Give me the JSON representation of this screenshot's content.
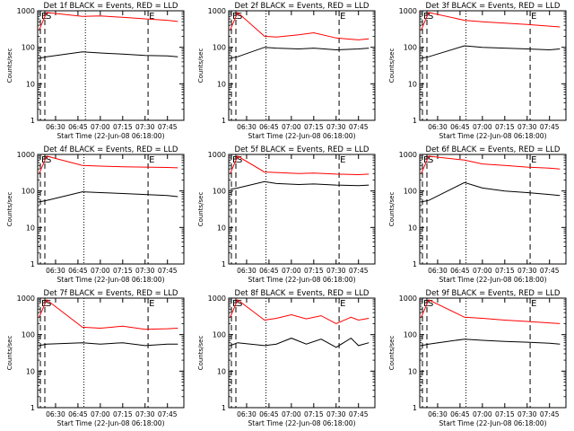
{
  "chart_data": [
    {
      "type": "line",
      "title": "Det 1f BLACK = Events, RED = LLD",
      "xlabel": "Start Time (22-Jun-08 06:18:00)",
      "ylabel": "Counts/sec",
      "x_ticks": [
        "06:30",
        "06:45",
        "07:00",
        "07:15",
        "07:30",
        "07:45"
      ],
      "y_ticks": [
        "1",
        "10",
        "100",
        "1000"
      ],
      "x_range": [
        "06:18",
        "07:56"
      ],
      "y_range": [
        1,
        1000
      ],
      "y_scale": "log",
      "markers": [
        {
          "label": "E",
          "time": "06:18"
        },
        {
          "label": "S",
          "time": "06:18"
        },
        {
          "label": "",
          "time": "06:50"
        },
        {
          "label": "E",
          "time": "07:32"
        }
      ],
      "series": [
        {
          "color": "#ff0000",
          "x": [
            "06:19",
            "06:24",
            "06:48",
            "07:00",
            "07:15",
            "07:30",
            "07:45",
            "07:52"
          ],
          "y": [
            300,
            900,
            700,
            720,
            660,
            600,
            550,
            510
          ]
        },
        {
          "color": "#000000",
          "x": [
            "06:19",
            "06:24",
            "06:48",
            "07:00",
            "07:15",
            "07:30",
            "07:45",
            "07:52"
          ],
          "y": [
            50,
            55,
            75,
            70,
            65,
            60,
            58,
            55
          ]
        }
      ]
    },
    {
      "type": "line",
      "title": "Det 2f BLACK = Events, RED = LLD",
      "xlabel": "Start Time (22-Jun-08 06:18:00)",
      "ylabel": "Counts/sec",
      "x_ticks": [
        "06:30",
        "06:45",
        "07:00",
        "07:15",
        "07:30",
        "07:45"
      ],
      "y_ticks": [
        "1",
        "10",
        "100",
        "1000"
      ],
      "x_range": [
        "06:18",
        "07:56"
      ],
      "y_range": [
        1,
        1000
      ],
      "y_scale": "log",
      "markers": [
        {
          "label": "E",
          "time": "06:18"
        },
        {
          "label": "S",
          "time": "06:18"
        },
        {
          "label": "",
          "time": "06:43"
        },
        {
          "label": "E",
          "time": "07:32"
        }
      ],
      "series": [
        {
          "color": "#ff0000",
          "x": [
            "06:19",
            "06:24",
            "06:42",
            "06:50",
            "07:05",
            "07:15",
            "07:30",
            "07:45",
            "07:52"
          ],
          "y": [
            300,
            900,
            200,
            190,
            220,
            250,
            180,
            160,
            170
          ]
        },
        {
          "color": "#000000",
          "x": [
            "06:19",
            "06:24",
            "06:42",
            "06:50",
            "07:05",
            "07:15",
            "07:30",
            "07:45",
            "07:52"
          ],
          "y": [
            50,
            55,
            100,
            95,
            90,
            95,
            85,
            90,
            95
          ]
        }
      ]
    },
    {
      "type": "line",
      "title": "Det 3f BLACK = Events, RED = LLD",
      "xlabel": "Start Time (22-Jun-08 06:18:00)",
      "ylabel": "Counts/sec",
      "x_ticks": [
        "06:30",
        "06:45",
        "07:00",
        "07:15",
        "07:30",
        "07:45"
      ],
      "y_ticks": [
        "1",
        "10",
        "100",
        "1000"
      ],
      "x_range": [
        "06:18",
        "07:56"
      ],
      "y_range": [
        1,
        1000
      ],
      "y_scale": "log",
      "markers": [
        {
          "label": "E",
          "time": "06:18"
        },
        {
          "label": "S",
          "time": "06:18"
        },
        {
          "label": "",
          "time": "06:49"
        },
        {
          "label": "E",
          "time": "07:32"
        }
      ],
      "series": [
        {
          "color": "#ff0000",
          "x": [
            "06:19",
            "06:24",
            "06:48",
            "07:00",
            "07:15",
            "07:30",
            "07:45",
            "07:52"
          ],
          "y": [
            300,
            900,
            550,
            500,
            460,
            420,
            380,
            360
          ]
        },
        {
          "color": "#000000",
          "x": [
            "06:19",
            "06:24",
            "06:48",
            "07:00",
            "07:15",
            "07:30",
            "07:45",
            "07:52"
          ],
          "y": [
            50,
            55,
            110,
            100,
            95,
            90,
            85,
            90
          ]
        }
      ]
    },
    {
      "type": "line",
      "title": "Det 4f BLACK = Events, RED = LLD",
      "xlabel": "Start Time (22-Jun-08 06:18:00)",
      "ylabel": "Counts/sec",
      "x_ticks": [
        "06:30",
        "06:45",
        "07:00",
        "07:15",
        "07:30",
        "07:45"
      ],
      "y_ticks": [
        "1",
        "10",
        "100",
        "1000"
      ],
      "x_range": [
        "06:18",
        "07:56"
      ],
      "y_range": [
        1,
        1000
      ],
      "y_scale": "log",
      "markers": [
        {
          "label": "E",
          "time": "06:18"
        },
        {
          "label": "S",
          "time": "06:18"
        },
        {
          "label": "",
          "time": "06:49"
        },
        {
          "label": "E",
          "time": "07:32"
        }
      ],
      "series": [
        {
          "color": "#ff0000",
          "x": [
            "06:19",
            "06:24",
            "06:48",
            "07:00",
            "07:15",
            "07:30",
            "07:45",
            "07:52"
          ],
          "y": [
            300,
            900,
            500,
            480,
            460,
            450,
            440,
            430
          ]
        },
        {
          "color": "#000000",
          "x": [
            "06:19",
            "06:24",
            "06:48",
            "07:00",
            "07:15",
            "07:30",
            "07:45",
            "07:52"
          ],
          "y": [
            50,
            55,
            95,
            90,
            85,
            80,
            75,
            70
          ]
        }
      ]
    },
    {
      "type": "line",
      "title": "Det 5f BLACK = Events, RED = LLD",
      "xlabel": "Start Time (22-Jun-08 06:18:00)",
      "ylabel": "Counts/sec",
      "x_ticks": [
        "06:30",
        "06:45",
        "07:00",
        "07:15",
        "07:30",
        "07:45"
      ],
      "y_ticks": [
        "1",
        "10",
        "100",
        "1000"
      ],
      "x_range": [
        "06:18",
        "07:56"
      ],
      "y_range": [
        1,
        1000
      ],
      "y_scale": "log",
      "markers": [
        {
          "label": "E",
          "time": "06:18"
        },
        {
          "label": "S",
          "time": "06:18"
        },
        {
          "label": "",
          "time": "06:43"
        },
        {
          "label": "E",
          "time": "07:32"
        }
      ],
      "series": [
        {
          "color": "#ff0000",
          "x": [
            "06:19",
            "06:24",
            "06:42",
            "06:50",
            "07:05",
            "07:15",
            "07:30",
            "07:45",
            "07:52"
          ],
          "y": [
            300,
            900,
            330,
            320,
            300,
            310,
            290,
            280,
            290
          ]
        },
        {
          "color": "#000000",
          "x": [
            "06:19",
            "06:24",
            "06:42",
            "06:50",
            "07:05",
            "07:15",
            "07:30",
            "07:45",
            "07:52"
          ],
          "y": [
            110,
            120,
            180,
            160,
            150,
            155,
            145,
            140,
            145
          ]
        }
      ]
    },
    {
      "type": "line",
      "title": "Det 6f BLACK = Events, RED = LLD",
      "xlabel": "Start Time (22-Jun-08 06:18:00)",
      "ylabel": "Counts/sec",
      "x_ticks": [
        "06:30",
        "06:45",
        "07:00",
        "07:15",
        "07:30",
        "07:45"
      ],
      "y_ticks": [
        "1",
        "10",
        "100",
        "1000"
      ],
      "x_range": [
        "06:18",
        "07:56"
      ],
      "y_range": [
        1,
        1000
      ],
      "y_scale": "log",
      "markers": [
        {
          "label": "E",
          "time": "06:18"
        },
        {
          "label": "S",
          "time": "06:18"
        },
        {
          "label": "",
          "time": "06:49"
        },
        {
          "label": "E",
          "time": "07:32"
        }
      ],
      "series": [
        {
          "color": "#ff0000",
          "x": [
            "06:19",
            "06:24",
            "06:48",
            "07:00",
            "07:15",
            "07:30",
            "07:45",
            "07:52"
          ],
          "y": [
            300,
            900,
            700,
            550,
            500,
            450,
            420,
            400
          ]
        },
        {
          "color": "#000000",
          "x": [
            "06:19",
            "06:24",
            "06:48",
            "07:00",
            "07:15",
            "07:30",
            "07:45",
            "07:52"
          ],
          "y": [
            50,
            55,
            170,
            120,
            100,
            90,
            80,
            75
          ]
        }
      ]
    },
    {
      "type": "line",
      "title": "Det 7f BLACK = Events, RED = LLD",
      "xlabel": "Start Time (22-Jun-08 06:18:00)",
      "ylabel": "Counts/sec",
      "x_ticks": [
        "06:30",
        "06:45",
        "07:00",
        "07:15",
        "07:30",
        "07:45"
      ],
      "y_ticks": [
        "1",
        "10",
        "100",
        "1000"
      ],
      "x_range": [
        "06:18",
        "07:56"
      ],
      "y_range": [
        1,
        1000
      ],
      "y_scale": "log",
      "markers": [
        {
          "label": "E",
          "time": "06:18"
        },
        {
          "label": "S",
          "time": "06:18"
        },
        {
          "label": "",
          "time": "06:49"
        },
        {
          "label": "E",
          "time": "07:32"
        }
      ],
      "series": [
        {
          "color": "#ff0000",
          "x": [
            "06:19",
            "06:24",
            "06:48",
            "07:00",
            "07:15",
            "07:30",
            "07:45",
            "07:52"
          ],
          "y": [
            300,
            900,
            160,
            150,
            170,
            140,
            145,
            150
          ]
        },
        {
          "color": "#000000",
          "x": [
            "06:19",
            "06:24",
            "06:48",
            "07:00",
            "07:15",
            "07:30",
            "07:45",
            "07:52"
          ],
          "y": [
            50,
            55,
            60,
            55,
            60,
            50,
            55,
            55
          ]
        }
      ]
    },
    {
      "type": "line",
      "title": "Det 8f BLACK = Events, RED = LLD",
      "xlabel": "Start Time (22-Jun-08 06:18:00)",
      "ylabel": "Counts/sec",
      "x_ticks": [
        "06:30",
        "06:45",
        "07:00",
        "07:15",
        "07:30",
        "07:45"
      ],
      "y_ticks": [
        "1",
        "10",
        "100",
        "1000"
      ],
      "x_range": [
        "06:18",
        "07:56"
      ],
      "y_range": [
        1,
        1000
      ],
      "y_scale": "log",
      "markers": [
        {
          "label": "E",
          "time": "06:18"
        },
        {
          "label": "S",
          "time": "06:18"
        },
        {
          "label": "",
          "time": "06:43"
        },
        {
          "label": "E",
          "time": "07:32"
        }
      ],
      "series": [
        {
          "color": "#ff0000",
          "x": [
            "06:19",
            "06:24",
            "06:42",
            "06:50",
            "07:00",
            "07:10",
            "07:20",
            "07:30",
            "07:40",
            "07:45",
            "07:52"
          ],
          "y": [
            300,
            900,
            250,
            280,
            350,
            270,
            330,
            200,
            300,
            250,
            280
          ]
        },
        {
          "color": "#000000",
          "x": [
            "06:19",
            "06:24",
            "06:42",
            "06:50",
            "07:00",
            "07:10",
            "07:20",
            "07:30",
            "07:40",
            "07:45",
            "07:52"
          ],
          "y": [
            50,
            60,
            50,
            55,
            80,
            55,
            75,
            45,
            80,
            50,
            60
          ]
        }
      ]
    },
    {
      "type": "line",
      "title": "Det 9f BLACK = Events, RED = LLD",
      "xlabel": "Start Time (22-Jun-08 06:18:00)",
      "ylabel": "Counts/sec",
      "x_ticks": [
        "06:30",
        "06:45",
        "07:00",
        "07:15",
        "07:30",
        "07:45"
      ],
      "y_ticks": [
        "1",
        "10",
        "100",
        "1000"
      ],
      "x_range": [
        "06:18",
        "07:56"
      ],
      "y_range": [
        1,
        1000
      ],
      "y_scale": "log",
      "markers": [
        {
          "label": "E",
          "time": "06:18"
        },
        {
          "label": "S",
          "time": "06:18"
        },
        {
          "label": "",
          "time": "06:49"
        },
        {
          "label": "E",
          "time": "07:32"
        }
      ],
      "series": [
        {
          "color": "#ff0000",
          "x": [
            "06:19",
            "06:24",
            "06:48",
            "07:00",
            "07:15",
            "07:30",
            "07:45",
            "07:52"
          ],
          "y": [
            300,
            900,
            300,
            280,
            250,
            230,
            210,
            200
          ]
        },
        {
          "color": "#000000",
          "x": [
            "06:19",
            "06:24",
            "06:48",
            "07:00",
            "07:15",
            "07:30",
            "07:45",
            "07:52"
          ],
          "y": [
            50,
            55,
            75,
            70,
            65,
            62,
            58,
            55
          ]
        }
      ]
    }
  ]
}
